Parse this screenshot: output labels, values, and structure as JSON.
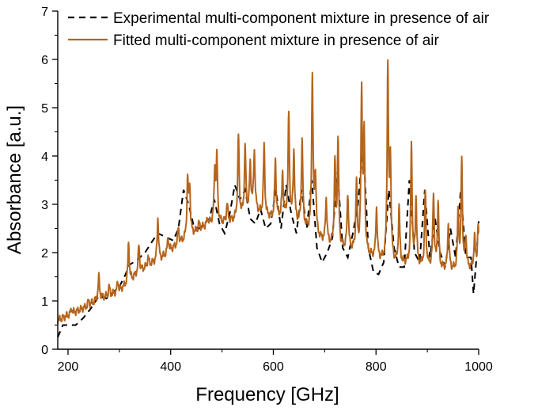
{
  "chart_data": {
    "type": "line",
    "xlabel": "Frequency [GHz]",
    "ylabel": "Absorbance [a.u.]",
    "xlim": [
      180,
      1000
    ],
    "ylim": [
      0,
      7
    ],
    "x_ticks": [
      200,
      400,
      600,
      800,
      1000
    ],
    "y_ticks": [
      0,
      1,
      2,
      3,
      4,
      5,
      6,
      7
    ],
    "x_minor_step": 100,
    "y_minor_step": 0.5,
    "grid": false,
    "legend_position": "top-left",
    "series": [
      {
        "name": "Experimental multi-component mixture in presence of air",
        "color": "#000000",
        "style": "dashed",
        "x": [
          180,
          190,
          200,
          215,
          230,
          245,
          260,
          275,
          290,
          300,
          310,
          320,
          335,
          350,
          365,
          375,
          385,
          395,
          405,
          415,
          425,
          435,
          445,
          455,
          465,
          475,
          485,
          495,
          505,
          515,
          525,
          535,
          545,
          555,
          565,
          575,
          585,
          595,
          605,
          615,
          625,
          635,
          645,
          655,
          665,
          675,
          685,
          695,
          705,
          715,
          725,
          735,
          745,
          755,
          765,
          775,
          785,
          795,
          805,
          815,
          825,
          835,
          845,
          855,
          865,
          875,
          885,
          895,
          905,
          915,
          925,
          935,
          945,
          955,
          965,
          975,
          985,
          990,
          995,
          1000
        ],
        "y": [
          0.25,
          0.5,
          0.5,
          0.5,
          0.65,
          0.85,
          1.1,
          1.05,
          1.2,
          1.3,
          1.5,
          1.75,
          1.85,
          2.0,
          2.25,
          2.4,
          2.35,
          2.3,
          2.25,
          2.5,
          3.3,
          3.0,
          2.55,
          2.5,
          2.6,
          2.7,
          3.1,
          2.6,
          2.4,
          2.8,
          3.4,
          3.1,
          3.3,
          2.7,
          2.6,
          2.9,
          2.5,
          2.6,
          3.3,
          2.5,
          3.4,
          2.8,
          2.4,
          3.3,
          2.5,
          3.5,
          2.1,
          1.8,
          2.0,
          2.3,
          3.7,
          2.1,
          1.9,
          2.4,
          3.0,
          4.3,
          2.1,
          1.6,
          1.55,
          1.8,
          3.3,
          2.1,
          1.7,
          1.7,
          3.5,
          2.0,
          1.8,
          3.3,
          1.9,
          2.7,
          2.0,
          1.7,
          2.5,
          1.9,
          3.3,
          1.9,
          1.9,
          1.15,
          1.8,
          2.65
        ]
      },
      {
        "name": "Fitted multi-component mixture in presence of air",
        "color": "#b5651d",
        "style": "solid",
        "baseline": {
          "x": [
            180,
            200,
            220,
            240,
            260,
            280,
            300,
            320,
            340,
            360,
            380,
            400,
            420,
            440,
            460,
            480,
            500,
            520,
            540,
            560,
            580,
            600,
            620,
            640,
            660,
            680,
            700,
            720,
            740,
            760,
            780,
            800,
            820,
            840,
            860,
            880,
            900,
            920,
            940,
            960,
            980,
            1000
          ],
          "y": [
            0.6,
            0.7,
            0.8,
            0.9,
            1.05,
            1.1,
            1.2,
            1.4,
            1.6,
            1.75,
            1.85,
            2.05,
            2.2,
            2.35,
            2.5,
            2.6,
            2.6,
            2.65,
            2.75,
            2.9,
            2.75,
            2.7,
            2.7,
            2.65,
            2.5,
            2.35,
            2.2,
            2.1,
            2.05,
            2.0,
            1.95,
            1.85,
            1.8,
            1.75,
            1.75,
            1.7,
            1.7,
            1.65,
            1.65,
            1.6,
            1.65,
            1.7
          ]
        },
        "peaks": [
          {
            "x": 207,
            "y": 0.85
          },
          {
            "x": 240,
            "y": 1.0
          },
          {
            "x": 260,
            "y": 1.5
          },
          {
            "x": 280,
            "y": 1.3
          },
          {
            "x": 297,
            "y": 1.4
          },
          {
            "x": 318,
            "y": 2.2
          },
          {
            "x": 338,
            "y": 2.15
          },
          {
            "x": 356,
            "y": 1.9
          },
          {
            "x": 375,
            "y": 2.72
          },
          {
            "x": 395,
            "y": 2.3
          },
          {
            "x": 415,
            "y": 2.5
          },
          {
            "x": 433,
            "y": 3.47
          },
          {
            "x": 437,
            "y": 3.3
          },
          {
            "x": 455,
            "y": 2.6
          },
          {
            "x": 472,
            "y": 2.7
          },
          {
            "x": 486,
            "y": 3.68
          },
          {
            "x": 490,
            "y": 3.9
          },
          {
            "x": 510,
            "y": 3.0
          },
          {
            "x": 532,
            "y": 4.4
          },
          {
            "x": 545,
            "y": 4.17
          },
          {
            "x": 555,
            "y": 3.8
          },
          {
            "x": 563,
            "y": 4.08
          },
          {
            "x": 582,
            "y": 4.2
          },
          {
            "x": 604,
            "y": 3.9
          },
          {
            "x": 618,
            "y": 3.6
          },
          {
            "x": 630,
            "y": 4.82
          },
          {
            "x": 640,
            "y": 4.06
          },
          {
            "x": 656,
            "y": 4.3
          },
          {
            "x": 676,
            "y": 5.65
          },
          {
            "x": 682,
            "y": 3.55
          },
          {
            "x": 703,
            "y": 3.1
          },
          {
            "x": 720,
            "y": 3.8
          },
          {
            "x": 726,
            "y": 4.3
          },
          {
            "x": 745,
            "y": 3.2
          },
          {
            "x": 762,
            "y": 3.4
          },
          {
            "x": 772,
            "y": 5.3
          },
          {
            "x": 777,
            "y": 4.3
          },
          {
            "x": 801,
            "y": 2.9
          },
          {
            "x": 823,
            "y": 5.77
          },
          {
            "x": 828,
            "y": 3.8
          },
          {
            "x": 845,
            "y": 2.9
          },
          {
            "x": 869,
            "y": 4.2
          },
          {
            "x": 878,
            "y": 3.1
          },
          {
            "x": 896,
            "y": 3.2
          },
          {
            "x": 912,
            "y": 3.22
          },
          {
            "x": 921,
            "y": 3.0
          },
          {
            "x": 941,
            "y": 2.6
          },
          {
            "x": 960,
            "y": 2.8
          },
          {
            "x": 967,
            "y": 3.9
          },
          {
            "x": 975,
            "y": 2.3
          },
          {
            "x": 992,
            "y": 2.3
          },
          {
            "x": 999,
            "y": 2.55
          }
        ]
      }
    ]
  }
}
